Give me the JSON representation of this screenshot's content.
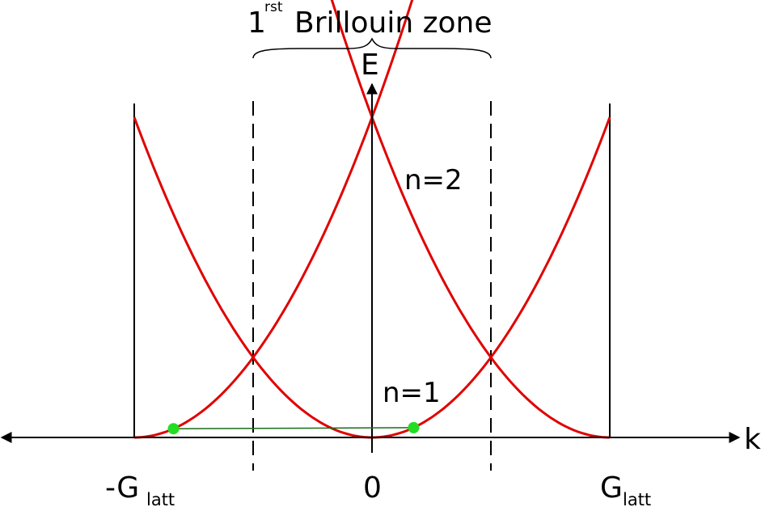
{
  "title": {
    "number": "1",
    "superscript": "rst",
    "text": "Brillouin zone"
  },
  "axes": {
    "x_label": "k",
    "y_label": "E",
    "ticks": [
      {
        "main": "-G",
        "sub": "latt",
        "k": -2
      },
      {
        "main": "0",
        "sub": "",
        "k": 0
      },
      {
        "main": "G",
        "sub": "latt",
        "k": 2
      }
    ]
  },
  "bands": [
    {
      "label": "n=1",
      "center_k": 0
    },
    {
      "label": "n=2",
      "center_k": 0
    }
  ],
  "parabola_centers_k": [
    -2,
    0,
    2
  ],
  "zone_boundaries_k": [
    -1,
    1
  ],
  "marked_states_k": [
    -1.67,
    0.35
  ],
  "colors": {
    "axis": "#000000",
    "band": "#e00000",
    "state_marker": "#22dd22",
    "state_link": "#1a6d1a"
  }
}
